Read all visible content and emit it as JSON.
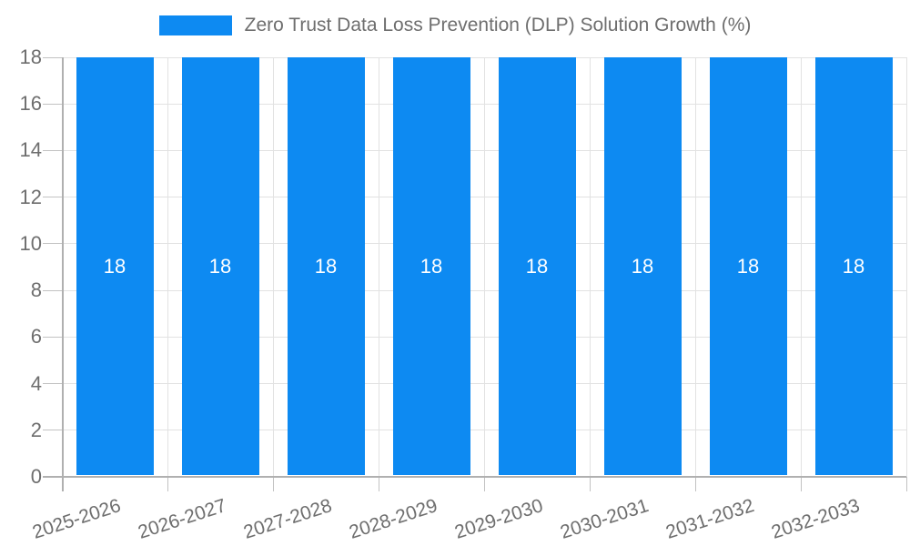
{
  "legend": {
    "label": "Zero Trust Data Loss Prevention (DLP) Solution Growth (%)"
  },
  "chart_data": {
    "type": "bar",
    "title": "Zero Trust Data Loss Prevention (DLP) Solution Growth (%)",
    "categories": [
      "2025-2026",
      "2026-2027",
      "2027-2028",
      "2028-2029",
      "2029-2030",
      "2030-2031",
      "2031-2032",
      "2032-2033"
    ],
    "values": [
      18,
      18,
      18,
      18,
      18,
      18,
      18,
      18
    ],
    "value_labels": [
      "18",
      "18",
      "18",
      "18",
      "18",
      "18",
      "18",
      "18"
    ],
    "xlabel": "",
    "ylabel": "",
    "ylim": [
      0,
      18
    ],
    "yticks": [
      0,
      2,
      4,
      6,
      8,
      10,
      12,
      14,
      16,
      18
    ],
    "grid": "horizontal gridlines at y ticks, vertical gridlines at category boundaries",
    "legend_position": "top-center",
    "x_tick_label_rotation_deg": -18,
    "colors": {
      "bar": "#0d8af2",
      "bar_value_label": "#ffffff",
      "grid_line": "#e2e2e2",
      "axis_line": "#b0b0b0",
      "tick_mark": "#c2c2c2",
      "tick_label_text": "#6e6e6e",
      "legend_text": "#6e6e6e",
      "background": "#ffffff"
    }
  }
}
